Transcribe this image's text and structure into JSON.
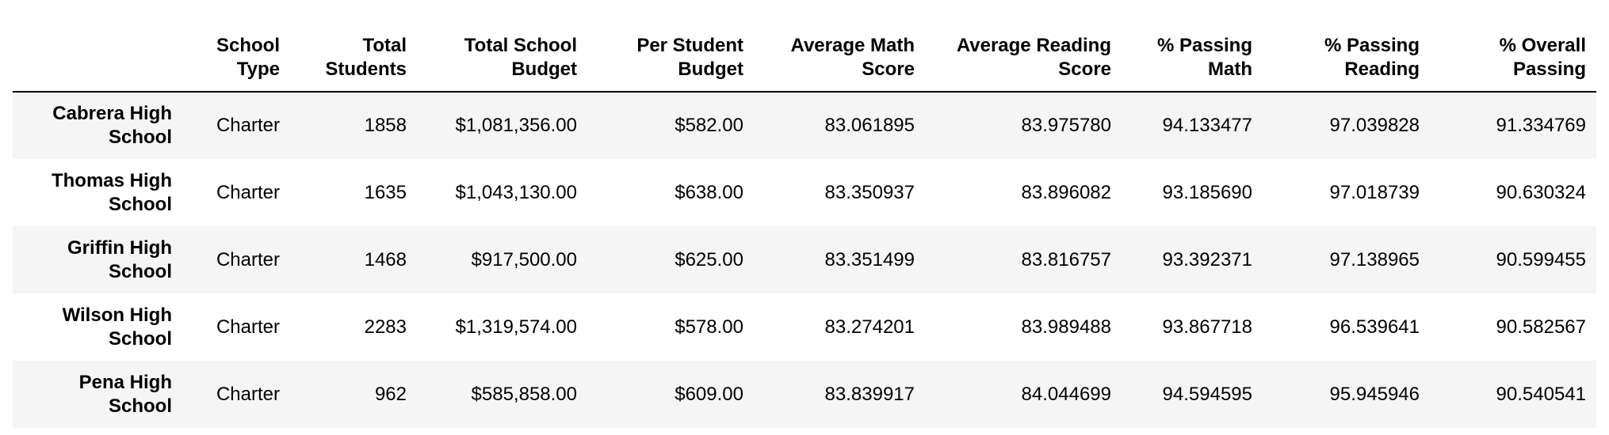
{
  "table": {
    "columns": [
      "",
      "School Type",
      "Total Students",
      "Total School Budget",
      "Per Student Budget",
      "Average Math Score",
      "Average Reading Score",
      "% Passing Math",
      "% Passing Reading",
      "% Overall Passing"
    ],
    "rows": [
      {
        "school": "Cabrera High School",
        "type": "Charter",
        "total_students": "1858",
        "total_budget": "$1,081,356.00",
        "per_student_budget": "$582.00",
        "avg_math": "83.061895",
        "avg_reading": "83.975780",
        "pct_math": "94.133477",
        "pct_reading": "97.039828",
        "pct_overall": "91.334769"
      },
      {
        "school": "Thomas High School",
        "type": "Charter",
        "total_students": "1635",
        "total_budget": "$1,043,130.00",
        "per_student_budget": "$638.00",
        "avg_math": "83.350937",
        "avg_reading": "83.896082",
        "pct_math": "93.185690",
        "pct_reading": "97.018739",
        "pct_overall": "90.630324"
      },
      {
        "school": "Griffin High School",
        "type": "Charter",
        "total_students": "1468",
        "total_budget": "$917,500.00",
        "per_student_budget": "$625.00",
        "avg_math": "83.351499",
        "avg_reading": "83.816757",
        "pct_math": "93.392371",
        "pct_reading": "97.138965",
        "pct_overall": "90.599455"
      },
      {
        "school": "Wilson High School",
        "type": "Charter",
        "total_students": "2283",
        "total_budget": "$1,319,574.00",
        "per_student_budget": "$578.00",
        "avg_math": "83.274201",
        "avg_reading": "83.989488",
        "pct_math": "93.867718",
        "pct_reading": "96.539641",
        "pct_overall": "90.582567"
      },
      {
        "school": "Pena High School",
        "type": "Charter",
        "total_students": "962",
        "total_budget": "$585,858.00",
        "per_student_budget": "$609.00",
        "avg_math": "83.839917",
        "avg_reading": "84.044699",
        "pct_math": "94.594595",
        "pct_reading": "95.945946",
        "pct_overall": "90.540541"
      }
    ]
  }
}
